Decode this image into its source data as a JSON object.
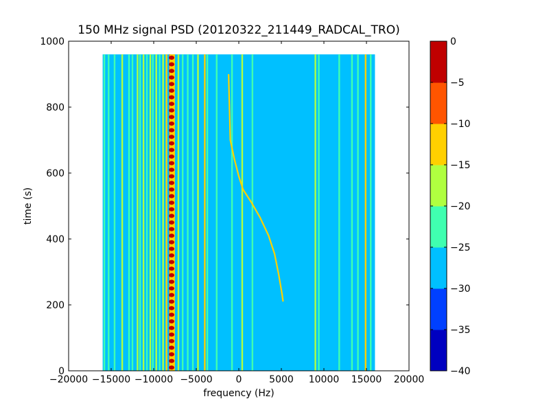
{
  "chart_data": {
    "type": "heatmap",
    "title": "150 MHz signal PSD (20120322_211449_RADCAL_TRO)",
    "xlabel": "frequency (Hz)",
    "ylabel": "time (s)",
    "xlim": [
      -20000,
      20000
    ],
    "ylim": [
      0,
      1000
    ],
    "xticks": [
      -20000,
      -15000,
      -10000,
      -5000,
      0,
      5000,
      10000,
      15000,
      20000
    ],
    "xtick_labels": [
      "−20000",
      "−15000",
      "−10000",
      "−5000",
      "0",
      "5000",
      "10000",
      "15000",
      "20000"
    ],
    "yticks": [
      0,
      200,
      400,
      600,
      800,
      1000
    ],
    "ytick_labels": [
      "0",
      "200",
      "400",
      "600",
      "800",
      "1000"
    ],
    "data_extent": {
      "x": [
        -16000,
        16000
      ],
      "y": [
        0,
        960
      ]
    },
    "background_level": -28,
    "colorbar": {
      "levels": [
        -40,
        -35,
        -30,
        -25,
        -20,
        -15,
        -10,
        -5,
        0
      ],
      "tick_labels": [
        "−40",
        "−35",
        "−30",
        "−25",
        "−20",
        "−15",
        "−10",
        "−5",
        "0"
      ],
      "colors": [
        "#0000c0",
        "#0040ff",
        "#00c0ff",
        "#40ffb0",
        "#b0ff40",
        "#ffd000",
        "#ff5500",
        "#c00000"
      ]
    },
    "vertical_lines": [
      {
        "f": -15800,
        "level": -22
      },
      {
        "f": -15300,
        "level": -22
      },
      {
        "f": -14600,
        "level": -22
      },
      {
        "f": -13700,
        "level": -17
      },
      {
        "f": -12900,
        "level": -22
      },
      {
        "f": -12500,
        "level": -22
      },
      {
        "f": -11900,
        "level": -17
      },
      {
        "f": -11600,
        "level": -22
      },
      {
        "f": -11200,
        "level": -17
      },
      {
        "f": -10800,
        "level": -22
      },
      {
        "f": -10400,
        "level": -17
      },
      {
        "f": -10100,
        "level": -22
      },
      {
        "f": -9700,
        "level": -17
      },
      {
        "f": -9300,
        "level": -22
      },
      {
        "f": -8900,
        "level": -17
      },
      {
        "f": -8500,
        "level": -12
      },
      {
        "f": -8100,
        "level": -7
      },
      {
        "f": -7600,
        "level": -12
      },
      {
        "f": -7100,
        "level": -17
      },
      {
        "f": -6600,
        "level": -22
      },
      {
        "f": -6000,
        "level": -22
      },
      {
        "f": -5400,
        "level": -22
      },
      {
        "f": -4800,
        "level": -17
      },
      {
        "f": -4000,
        "level": -12
      },
      {
        "f": -3700,
        "level": -22
      },
      {
        "f": -2600,
        "level": -22
      },
      {
        "f": -800,
        "level": -22
      },
      {
        "f": 400,
        "level": -17
      },
      {
        "f": 1600,
        "level": -22
      },
      {
        "f": 9000,
        "level": -17
      },
      {
        "f": 9400,
        "level": -22
      },
      {
        "f": 11800,
        "level": -22
      },
      {
        "f": 13300,
        "level": -22
      },
      {
        "f": 14000,
        "level": -22
      },
      {
        "f": 14900,
        "level": -12
      },
      {
        "f": 15500,
        "level": -22
      }
    ],
    "drifting_signal": {
      "level": -12,
      "points": [
        {
          "f": -1200,
          "t": 900
        },
        {
          "f": -1000,
          "t": 700
        },
        {
          "f": -500,
          "t": 640
        },
        {
          "f": 0,
          "t": 590
        },
        {
          "f": 500,
          "t": 550
        },
        {
          "f": 1500,
          "t": 510
        },
        {
          "f": 2500,
          "t": 465
        },
        {
          "f": 3500,
          "t": 410
        },
        {
          "f": 4200,
          "t": 355
        },
        {
          "f": 4700,
          "t": 290
        },
        {
          "f": 5100,
          "t": 230
        },
        {
          "f": 5200,
          "t": 210
        }
      ]
    },
    "pulsed_line": {
      "f": -7900,
      "level": -2,
      "period_s": 20
    }
  }
}
